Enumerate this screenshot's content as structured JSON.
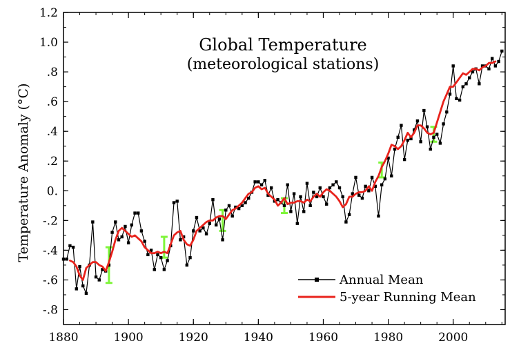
{
  "chart_data": {
    "type": "line",
    "title": "Global Temperature",
    "subtitle": "(meteorological stations)",
    "xlabel": "",
    "ylabel": "Temperature Anomaly (°C)",
    "xlim": [
      1880,
      2016
    ],
    "ylim": [
      -0.9,
      1.2
    ],
    "x_ticks": [
      1880,
      1900,
      1920,
      1940,
      1960,
      1980,
      2000
    ],
    "y_ticks": [
      -0.8,
      -0.6,
      -0.4,
      -0.2,
      0.0,
      0.2,
      0.4,
      0.6,
      0.8,
      1.0,
      1.2
    ],
    "y_tick_labels": [
      "-.8",
      "-.6",
      "-.4",
      "-.2",
      "0.",
      ".2",
      ".4",
      ".6",
      ".8",
      "1.0",
      "1.2"
    ],
    "grid": false,
    "legend_position": "bottom-right",
    "series": [
      {
        "name": "Annual Mean",
        "color": "#000000",
        "marker": "square",
        "x": [
          1880,
          1881,
          1882,
          1883,
          1884,
          1885,
          1886,
          1887,
          1888,
          1889,
          1890,
          1891,
          1892,
          1893,
          1894,
          1895,
          1896,
          1897,
          1898,
          1899,
          1900,
          1901,
          1902,
          1903,
          1904,
          1905,
          1906,
          1907,
          1908,
          1909,
          1910,
          1911,
          1912,
          1913,
          1914,
          1915,
          1916,
          1917,
          1918,
          1919,
          1920,
          1921,
          1922,
          1923,
          1924,
          1925,
          1926,
          1927,
          1928,
          1929,
          1930,
          1931,
          1932,
          1933,
          1934,
          1935,
          1936,
          1937,
          1938,
          1939,
          1940,
          1941,
          1942,
          1943,
          1944,
          1945,
          1946,
          1947,
          1948,
          1949,
          1950,
          1951,
          1952,
          1953,
          1954,
          1955,
          1956,
          1957,
          1958,
          1959,
          1960,
          1961,
          1962,
          1963,
          1964,
          1965,
          1966,
          1967,
          1968,
          1969,
          1970,
          1971,
          1972,
          1973,
          1974,
          1975,
          1976,
          1977,
          1978,
          1979,
          1980,
          1981,
          1982,
          1983,
          1984,
          1985,
          1986,
          1987,
          1988,
          1989,
          1990,
          1991,
          1992,
          1993,
          1994,
          1995,
          1996,
          1997,
          1998,
          1999,
          2000,
          2001,
          2002,
          2003,
          2004,
          2005,
          2006,
          2007,
          2008,
          2009,
          2010,
          2011,
          2012,
          2013,
          2014,
          2015
        ],
        "y": [
          -0.46,
          -0.46,
          -0.37,
          -0.38,
          -0.66,
          -0.51,
          -0.64,
          -0.69,
          -0.5,
          -0.21,
          -0.58,
          -0.6,
          -0.53,
          -0.54,
          -0.5,
          -0.28,
          -0.21,
          -0.33,
          -0.31,
          -0.24,
          -0.35,
          -0.23,
          -0.15,
          -0.15,
          -0.27,
          -0.34,
          -0.43,
          -0.4,
          -0.53,
          -0.43,
          -0.45,
          -0.53,
          -0.47,
          -0.37,
          -0.08,
          -0.07,
          -0.33,
          -0.31,
          -0.5,
          -0.45,
          -0.27,
          -0.18,
          -0.27,
          -0.25,
          -0.29,
          -0.22,
          -0.06,
          -0.23,
          -0.19,
          -0.33,
          -0.13,
          -0.1,
          -0.17,
          -0.11,
          -0.12,
          -0.1,
          -0.08,
          -0.05,
          -0.01,
          0.06,
          0.06,
          0.04,
          0.07,
          -0.03,
          0.02,
          -0.07,
          -0.06,
          -0.08,
          -0.1,
          0.04,
          -0.14,
          -0.02,
          -0.22,
          -0.04,
          -0.14,
          0.05,
          -0.1,
          -0.01,
          -0.04,
          0.02,
          -0.04,
          -0.09,
          0.02,
          0.04,
          0.06,
          0.02,
          -0.04,
          -0.21,
          -0.16,
          -0.02,
          0.09,
          -0.03,
          -0.05,
          0.03,
          0.0,
          0.09,
          0.03,
          -0.17,
          0.04,
          0.08,
          0.22,
          0.1,
          0.28,
          0.36,
          0.44,
          0.21,
          0.34,
          0.35,
          0.41,
          0.47,
          0.33,
          0.54,
          0.43,
          0.28,
          0.36,
          0.38,
          0.32,
          0.45,
          0.53,
          0.65,
          0.84,
          0.62,
          0.61,
          0.7,
          0.72,
          0.76,
          0.8,
          0.82,
          0.72,
          0.84,
          0.84,
          0.82,
          0.89,
          0.84,
          0.87,
          0.94
        ]
      },
      {
        "name": "5-year Running Mean",
        "color": "#e8231c",
        "x": [
          1882,
          1883,
          1884,
          1885,
          1886,
          1887,
          1888,
          1889,
          1890,
          1891,
          1892,
          1893,
          1894,
          1895,
          1896,
          1897,
          1898,
          1899,
          1900,
          1901,
          1902,
          1903,
          1904,
          1905,
          1906,
          1907,
          1908,
          1909,
          1910,
          1911,
          1912,
          1913,
          1914,
          1915,
          1916,
          1917,
          1918,
          1919,
          1920,
          1921,
          1922,
          1923,
          1924,
          1925,
          1926,
          1927,
          1928,
          1929,
          1930,
          1931,
          1932,
          1933,
          1934,
          1935,
          1936,
          1937,
          1938,
          1939,
          1940,
          1941,
          1942,
          1943,
          1944,
          1945,
          1946,
          1947,
          1948,
          1949,
          1950,
          1951,
          1952,
          1953,
          1954,
          1955,
          1956,
          1957,
          1958,
          1959,
          1960,
          1961,
          1962,
          1963,
          1964,
          1965,
          1966,
          1967,
          1968,
          1969,
          1970,
          1971,
          1972,
          1973,
          1974,
          1975,
          1976,
          1977,
          1978,
          1979,
          1980,
          1981,
          1982,
          1983,
          1984,
          1985,
          1986,
          1987,
          1988,
          1989,
          1990,
          1991,
          1992,
          1993,
          1994,
          1995,
          1996,
          1997,
          1998,
          1999,
          2000,
          2001,
          2002,
          2003,
          2004,
          2005,
          2006,
          2007,
          2008,
          2009,
          2010,
          2011,
          2012,
          2013
        ],
        "y": [
          -0.47,
          -0.48,
          -0.51,
          -0.57,
          -0.6,
          -0.52,
          -0.5,
          -0.48,
          -0.48,
          -0.5,
          -0.51,
          -0.54,
          -0.48,
          -0.41,
          -0.33,
          -0.27,
          -0.25,
          -0.27,
          -0.29,
          -0.31,
          -0.3,
          -0.32,
          -0.34,
          -0.38,
          -0.4,
          -0.42,
          -0.42,
          -0.41,
          -0.42,
          -0.41,
          -0.42,
          -0.36,
          -0.3,
          -0.28,
          -0.27,
          -0.33,
          -0.36,
          -0.37,
          -0.33,
          -0.27,
          -0.25,
          -0.23,
          -0.21,
          -0.2,
          -0.2,
          -0.18,
          -0.17,
          -0.17,
          -0.19,
          -0.16,
          -0.13,
          -0.12,
          -0.1,
          -0.08,
          -0.05,
          -0.02,
          -0.01,
          0.02,
          0.03,
          0.01,
          0.02,
          -0.02,
          -0.04,
          -0.06,
          -0.1,
          -0.08,
          -0.05,
          -0.09,
          -0.08,
          -0.08,
          -0.07,
          -0.07,
          -0.08,
          -0.06,
          -0.07,
          -0.04,
          -0.02,
          -0.04,
          -0.01,
          0.01,
          0.0,
          -0.02,
          -0.04,
          -0.07,
          -0.11,
          -0.09,
          -0.04,
          -0.04,
          -0.02,
          -0.01,
          -0.01,
          0.0,
          0.03,
          0.0,
          0.06,
          0.1,
          0.16,
          0.2,
          0.25,
          0.31,
          0.3,
          0.28,
          0.3,
          0.34,
          0.39,
          0.36,
          0.39,
          0.44,
          0.44,
          0.42,
          0.39,
          0.38,
          0.39,
          0.46,
          0.53,
          0.6,
          0.65,
          0.7,
          0.7,
          0.73,
          0.76,
          0.79,
          0.78,
          0.8,
          0.82,
          0.82,
          0.81,
          0.83,
          0.84,
          0.86,
          0.86,
          0.87
        ]
      }
    ],
    "uncertainty_bars": {
      "color": "#7ff53a",
      "points": [
        {
          "x": 1894,
          "y": -0.5,
          "err": 0.12
        },
        {
          "x": 1911,
          "y": -0.38,
          "err": 0.07
        },
        {
          "x": 1929,
          "y": -0.2,
          "err": 0.07
        },
        {
          "x": 1948,
          "y": -0.1,
          "err": 0.05
        },
        {
          "x": 1978,
          "y": 0.14,
          "err": 0.05
        },
        {
          "x": 1994,
          "y": 0.38,
          "err": 0.05
        }
      ]
    }
  }
}
